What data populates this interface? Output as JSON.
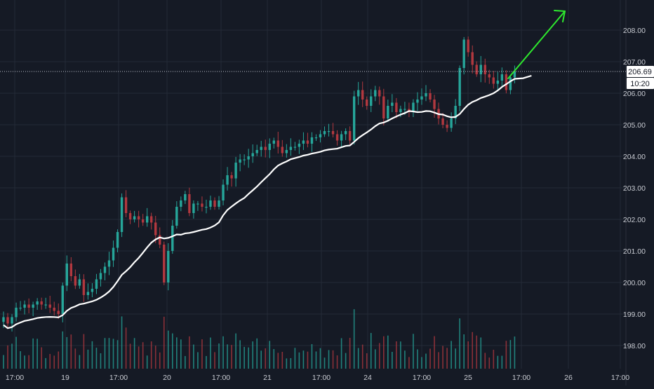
{
  "colors": {
    "background": "#151a25",
    "grid": "#232a36",
    "up": "#26a69a",
    "down": "#b2383f",
    "ma_line": "#ffffff",
    "arrow": "#2ee82e",
    "axis_text": "#c9ccd3",
    "last_price_line": "#b8bcc6",
    "label_bg": "#ffffff",
    "label_text": "#131722"
  },
  "price_axis": {
    "ticks": [
      "198.00",
      "199.00",
      "200.00",
      "201.00",
      "202.00",
      "203.00",
      "204.00",
      "205.00",
      "206.00",
      "207.00",
      "208.00"
    ],
    "last_price_label": "206.69",
    "countdown_label": "10:20"
  },
  "time_axis": {
    "ticks": [
      "17:00",
      "19",
      "17:00",
      "20",
      "17:00",
      "21",
      "17:00",
      "24",
      "17:00",
      "25",
      "17:00",
      "26",
      "17:00"
    ]
  },
  "chart_data": {
    "type": "candlestick",
    "x_label_sequence": [
      "17:00",
      "19",
      "17:00",
      "20",
      "17:00",
      "21",
      "17:00",
      "24",
      "17:00",
      "25",
      "17:00",
      "26",
      "17:00"
    ],
    "ylim": [
      197.6,
      208.8
    ],
    "grid": true,
    "last_price": 206.69,
    "candle_closes": [
      198.9,
      198.7,
      198.9,
      199.2,
      199.2,
      199.3,
      199.2,
      199.3,
      199.4,
      199.3,
      199.3,
      199.2,
      199.1,
      199.0,
      199.9,
      200.6,
      200.2,
      199.9,
      200.1,
      199.6,
      199.7,
      199.8,
      200.1,
      200.3,
      200.5,
      200.7,
      201.1,
      201.6,
      202.7,
      202.2,
      202.0,
      202.1,
      202.0,
      201.9,
      202.1,
      201.9,
      201.5,
      201.2,
      200.0,
      201.0,
      201.8,
      202.4,
      202.6,
      202.8,
      202.2,
      202.5,
      202.5,
      202.4,
      202.4,
      202.6,
      202.4,
      202.6,
      203.1,
      203.4,
      203.3,
      203.8,
      203.9,
      203.9,
      204.0,
      204.1,
      204.2,
      204.3,
      204.2,
      204.4,
      204.5,
      204.3,
      204.1,
      204.2,
      204.3,
      204.3,
      204.4,
      204.5,
      204.4,
      204.6,
      204.6,
      204.7,
      204.8,
      204.8,
      204.7,
      204.5,
      204.7,
      204.8,
      204.5,
      205.9,
      206.1,
      205.8,
      205.6,
      205.9,
      206.1,
      205.9,
      205.2,
      205.6,
      205.7,
      205.4,
      205.5,
      205.5,
      205.4,
      205.7,
      205.8,
      205.9,
      206.0,
      205.8,
      205.5,
      205.2,
      205.0,
      204.9,
      205.2,
      205.6,
      206.8,
      207.7,
      207.3,
      206.9,
      206.6,
      206.9,
      206.6,
      206.5,
      206.3,
      206.4,
      206.6,
      206.1,
      206.5,
      206.69
    ],
    "ma_line_description": "white moving-average line rising from ~198.8 to ~206.3",
    "volume_bars": "green and red volume histogram along the bottom of the plot",
    "annotations": [
      "green trend arrow pointing up-right toward ~208.5"
    ]
  }
}
